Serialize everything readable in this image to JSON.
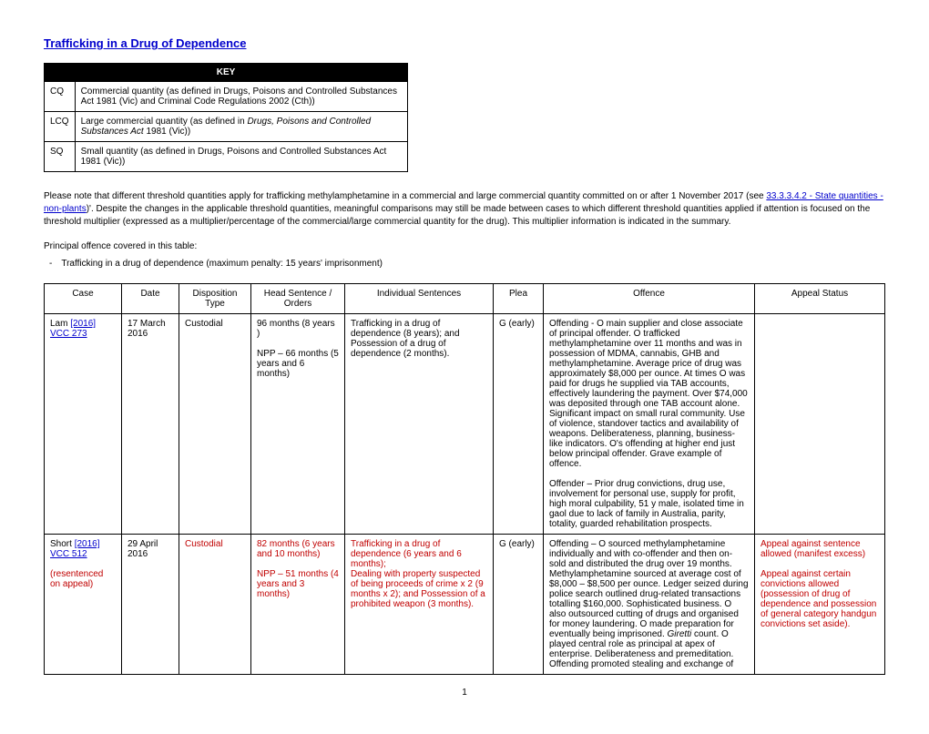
{
  "title": "Trafficking in a Drug of Dependence",
  "keyHeader": "KEY",
  "key": [
    {
      "abbr": "CQ",
      "desc": "Commercial quantity (as defined in Drugs, Poisons and Controlled Substances Act 1981 (Vic) and Criminal Code Regulations 2002 (Cth))"
    },
    {
      "abbr": "LCQ",
      "desc": "Large commercial quantity (as defined in <i>Drugs, Poisons and Controlled Substances Act</i> 1981 (Vic))"
    },
    {
      "abbr": "SQ",
      "desc": "Small quantity (as defined in Drugs, Poisons and Controlled Substances Act 1981 (Vic))"
    }
  ],
  "noteHtml": "Please note that different threshold quantities apply for trafficking methylamphetamine in a commercial and large commercial quantity committed on or after 1 November 2017 (see <span class=\"link\">33.3.3.4.2 - State quantities - non-plants</span>)'. Despite the changes in the applicable threshold quantities, meaningful comparisons may still be made between cases to which different threshold quantities applied if attention is focused on the threshold multiplier (expressed as a multiplier/percentage of the commercial/large commercial quantity for the drug). This multiplier information is indicated in the summary.",
  "principalLabel": "Principal offence covered in this table:",
  "principalOffence": "Trafficking in a drug of dependence (maximum penalty: 15 years' imprisonment)",
  "columns": [
    "Case",
    "Date",
    "Disposition Type",
    "Head Sentence / Orders",
    "Individual Sentences",
    "Plea",
    "Offence",
    "Appeal Status"
  ],
  "rows": [
    {
      "caseHtml": "Lam <span class=\"case-link\">[2016] VCC 273</span>",
      "date": "17 March 2016",
      "disposition": "Custodial",
      "headSentence": "96 months (8 years )<br><br>NPP – 66 months (5 years and 6 months)",
      "individual": "Trafficking in a drug of dependence (8 years); and Possession of a drug of dependence (2 months).",
      "plea": "G (early)",
      "offence": "Offending - O main supplier and close associate of principal offender. O trafficked methylamphetamine over 11 months and was in possession of MDMA, cannabis, GHB and methylamphetamine. Average price of drug was approximately $8,000 per ounce. At times O was paid for drugs he supplied via TAB accounts, effectively laundering the payment. Over $74,000 was deposited through one TAB account alone. Significant impact on small rural community. Use of violence, standover tactics and availability of weapons. Deliberateness, planning, business-like indicators. O's offending at higher end just below principal offender. Grave example of offence.<br><br>Offender – Prior drug convictions, drug use, involvement for personal use, supply for profit, high moral culpability, 51 y male, isolated time in gaol due to lack of family in Australia, parity, totality, guarded rehabilitation prospects.",
      "appeal": "",
      "red": false
    },
    {
      "caseHtml": "Short <span class=\"case-link\">[2016] VCC 512</span><br><br><span class=\"red\">(resentenced on appeal)</span>",
      "date": "29 April 2016",
      "disposition": "<span class=\"red\">Custodial</span>",
      "headSentence": "<span class=\"red\">82 months (6 years and 10 months)<br><br>NPP – 51 months (4 years and 3 months)</span>",
      "individual": "<span class=\"red\">Trafficking in a drug of dependence (6 years and 6 months);<br>Dealing with property suspected of being proceeds of crime x 2 (9 months x 2); and Possession of a prohibited weapon (3 months).</span>",
      "plea": "G (early)",
      "offence": "Offending – O sourced methylamphetamine individually and with co-offender and then on-sold and distributed the drug over 19 months. Methylamphetamine sourced at average cost of $8,000 – $8,500 per ounce. Ledger seized during police search outlined drug-related transactions totalling $160,000. Sophisticated business. O also outsourced cutting of drugs and organised for money laundering. O made preparation for eventually being imprisoned. <i>Giretti</i> count. O played central role as principal at apex of enterprise. Deliberateness and premeditation. Offending promoted stealing and exchange of",
      "appeal": "<span class=\"red\">Appeal against sentence allowed (manifest excess)<br><br>Appeal against certain convictions allowed (possession of drug of dependence and possession of general category handgun convictions set aside).</span>",
      "red": false
    }
  ],
  "pageNumber": "1"
}
